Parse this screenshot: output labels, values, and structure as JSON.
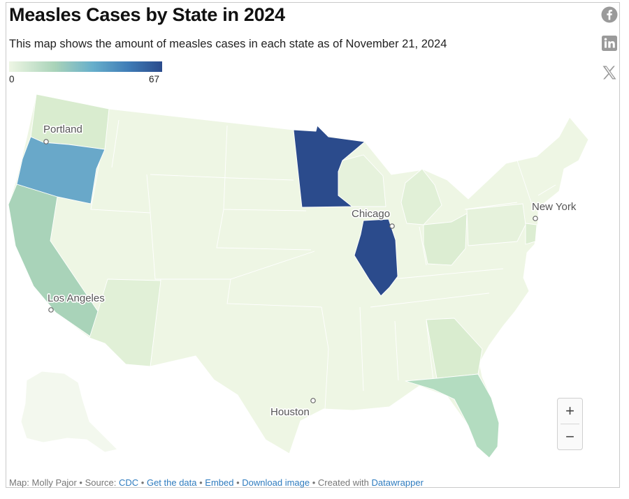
{
  "header": {
    "title": "Measles Cases by State in 2024",
    "subtitle": "This map shows the amount of measles cases in each state as of November 21, 2024"
  },
  "legend": {
    "min_label": "0",
    "max_label": "67",
    "min_value": 0,
    "max_value": 67,
    "colors": [
      "#eef6e4",
      "#a9d3b9",
      "#66aecb",
      "#3f7cb6",
      "#2b4b8c"
    ]
  },
  "share_icons": [
    "facebook-icon",
    "linkedin-icon",
    "x-icon"
  ],
  "map_data": {
    "states_highlighted": [
      {
        "state": "Minnesota",
        "level": "high",
        "color": "#2b4b8c"
      },
      {
        "state": "Illinois",
        "level": "high",
        "color": "#2b4b8c"
      },
      {
        "state": "Oregon",
        "level": "medium",
        "color": "#69a8c9"
      },
      {
        "state": "California",
        "level": "low-medium",
        "color": "#a9d3b9"
      },
      {
        "state": "Florida",
        "level": "low-medium",
        "color": "#b3dcc0"
      },
      {
        "state": "Washington",
        "level": "low",
        "color": "#d9eccf"
      },
      {
        "state": "Georgia",
        "level": "low",
        "color": "#d9eccf"
      },
      {
        "state": "Arizona",
        "level": "low",
        "color": "#e1f0d7"
      },
      {
        "state": "Michigan",
        "level": "low",
        "color": "#e1f0d7"
      },
      {
        "state": "Ohio",
        "level": "low",
        "color": "#dcedd2"
      }
    ],
    "base_color": "#eef6e4",
    "cities": [
      {
        "name": "Portland"
      },
      {
        "name": "Chicago"
      },
      {
        "name": "New York"
      },
      {
        "name": "Los Angeles"
      },
      {
        "name": "Houston"
      }
    ]
  },
  "zoom": {
    "plus": "+",
    "minus": "−"
  },
  "footer": {
    "prefix": "Map: Molly Pajor • Source: ",
    "source_link": "CDC",
    "sep1": " • ",
    "get_data": "Get the data",
    "sep2": " • ",
    "embed": "Embed",
    "sep3": "  • ",
    "download": "Download image",
    "created": " • Created with ",
    "datawrapper": "Datawrapper"
  }
}
